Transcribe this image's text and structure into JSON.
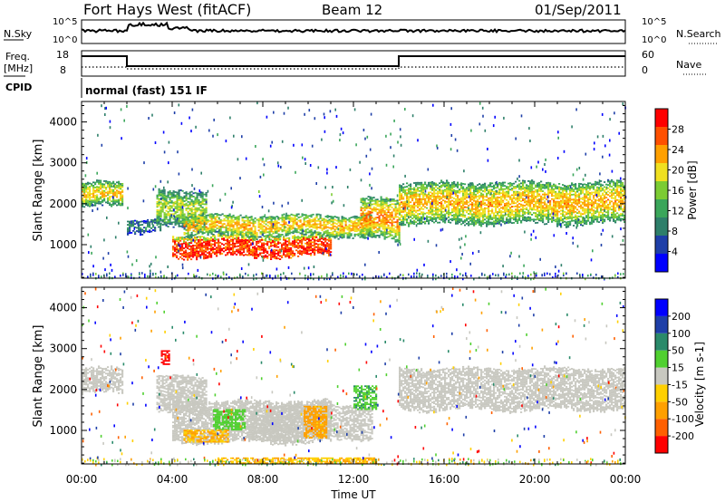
{
  "header": {
    "station": "Fort Hays West (fitACF)",
    "beam": "Beam 12",
    "date": "01/Sep/2011"
  },
  "status_panels": {
    "nsky": {
      "left_label": "N.Sky",
      "left_ticks": [
        "10^5",
        "10^0"
      ],
      "right_label": "N.Search",
      "right_ticks": [
        "10^5",
        "10^0"
      ]
    },
    "freq": {
      "left_label_line1": "Freq.",
      "left_label_line2": "[MHz]",
      "left_ticks": [
        "18",
        "8"
      ],
      "right_label": "Nave",
      "right_ticks": [
        "60",
        "0"
      ]
    },
    "cpid": {
      "label": "CPID",
      "value": "normal (fast) 151 IF"
    }
  },
  "colors": {
    "power": [
      "#0000ff",
      "#1e3fa8",
      "#2e7f6a",
      "#3aa65a",
      "#7ccc33",
      "#f0e020",
      "#ffa000",
      "#ff5000",
      "#ff0000"
    ],
    "velocity": [
      "#ff0000",
      "#ff6000",
      "#ffa000",
      "#ffd000",
      "#c8c8c0",
      "#50d030",
      "#2a8a6a",
      "#1e3fa8",
      "#0000ff"
    ],
    "grey": "#c8c8c0"
  },
  "chart_data": [
    {
      "type": "heatmap",
      "name": "power",
      "xlabel": "Time UT",
      "ylabel": "Slant Range [km]",
      "xlim": [
        0,
        24
      ],
      "ylim": [
        180,
        4500
      ],
      "x_ticks": [
        "00:00",
        "04:00",
        "08:00",
        "12:00",
        "16:00",
        "20:00",
        "00:00"
      ],
      "y_ticks": [
        "1000",
        "2000",
        "3000",
        "4000"
      ],
      "colorbar": {
        "label": "Power [dB]",
        "range": [
          0,
          32
        ],
        "ticks": [
          "4",
          "8",
          "12",
          "16",
          "20",
          "24",
          "28"
        ]
      },
      "bands": [
        {
          "t0": 0.0,
          "t1": 1.8,
          "r0": 1900,
          "r1": 2500,
          "level": 0.65
        },
        {
          "t0": 2.0,
          "t1": 3.5,
          "r0": 1300,
          "r1": 1600,
          "level": 0.3
        },
        {
          "t0": 3.3,
          "t1": 5.5,
          "r0": 1400,
          "r1": 2300,
          "level": 0.55
        },
        {
          "t0": 4.0,
          "t1": 11.0,
          "r0": 700,
          "r1": 1200,
          "level": 0.95
        },
        {
          "t0": 4.5,
          "t1": 12.8,
          "r0": 1200,
          "r1": 1700,
          "level": 0.7
        },
        {
          "t0": 12.3,
          "t1": 14.0,
          "r0": 1100,
          "r1": 2100,
          "level": 0.75
        },
        {
          "t0": 14.0,
          "t1": 24.0,
          "r0": 1500,
          "r1": 2500,
          "level": 0.7
        }
      ]
    },
    {
      "type": "heatmap",
      "name": "velocity",
      "xlabel": "Time UT",
      "ylabel": "Slant Range [km]",
      "xlim": [
        0,
        24
      ],
      "ylim": [
        180,
        4500
      ],
      "x_ticks": [
        "00:00",
        "04:00",
        "08:00",
        "12:00",
        "16:00",
        "20:00",
        "00:00"
      ],
      "y_ticks": [
        "1000",
        "2000",
        "3000",
        "4000"
      ],
      "colorbar": {
        "label": "Velocity [m s-1]",
        "range": [
          -250,
          250
        ],
        "ticks": [
          "-200",
          "-100",
          "-50",
          "-15",
          "15",
          "50",
          "100",
          "200"
        ]
      },
      "bands": [
        {
          "t0": 0.0,
          "t1": 1.8,
          "r0": 1900,
          "r1": 2500,
          "level": 0.5
        },
        {
          "t0": 3.3,
          "t1": 5.5,
          "r0": 1400,
          "r1": 2300,
          "level": 0.5
        },
        {
          "t0": 4.0,
          "t1": 11.0,
          "r0": 700,
          "r1": 1700,
          "level": 0.5
        },
        {
          "t0": 7.5,
          "t1": 12.8,
          "r0": 800,
          "r1": 1600,
          "level": 0.5
        },
        {
          "t0": 14.0,
          "t1": 24.0,
          "r0": 1500,
          "r1": 2500,
          "level": 0.5
        }
      ],
      "patches": [
        {
          "t0": 5.8,
          "t1": 7.2,
          "r0": 1000,
          "r1": 1500,
          "level": 0.62
        },
        {
          "t0": 9.8,
          "t1": 10.8,
          "r0": 800,
          "r1": 1600,
          "level": 0.3
        },
        {
          "t0": 4.5,
          "t1": 6.5,
          "r0": 700,
          "r1": 1000,
          "level": 0.33
        },
        {
          "t0": 3.5,
          "t1": 3.9,
          "r0": 2600,
          "r1": 2950,
          "level": 0.05
        },
        {
          "t0": 12.0,
          "t1": 13.0,
          "r0": 1500,
          "r1": 2100,
          "level": 0.65
        },
        {
          "t0": 6.0,
          "t1": 13.0,
          "r0": 180,
          "r1": 320,
          "level": 0.33
        }
      ]
    }
  ]
}
